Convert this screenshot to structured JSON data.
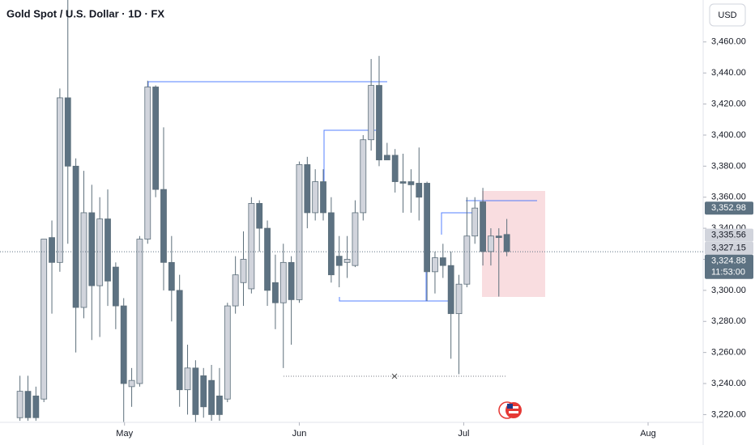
{
  "chart_data": {
    "type": "candlestick",
    "title": "Gold Spot / U.S. Dollar · 1D · FX",
    "currency": "USD",
    "up_color": "#d1d4dc",
    "down_color": "#5d7282",
    "wick_color": "#5d6f7b",
    "ylim": [
      3215,
      3487
    ],
    "yticks": [
      {
        "value": 3220,
        "label": "3,220.00"
      },
      {
        "value": 3240,
        "label": "3,240.00"
      },
      {
        "value": 3260,
        "label": "3,260.00"
      },
      {
        "value": 3280,
        "label": "3,280.00"
      },
      {
        "value": 3300,
        "label": "3,300.00"
      },
      {
        "value": 3320,
        "label": "3,320.00"
      },
      {
        "value": 3340,
        "label": "3,340.00"
      },
      {
        "value": 3360,
        "label": "3,360.00"
      },
      {
        "value": 3380,
        "label": "3,380.00"
      },
      {
        "value": 3400,
        "label": "3,400.00"
      },
      {
        "value": 3420,
        "label": "3,420.00"
      },
      {
        "value": 3440,
        "label": "3,440.00"
      },
      {
        "value": 3460,
        "label": "3,460.00"
      }
    ],
    "xlim": [
      -2.5,
      85.6
    ],
    "xticks": [
      {
        "value": 13.1,
        "label": "May"
      },
      {
        "value": 35,
        "label": "Jun"
      },
      {
        "value": 55.6,
        "label": "Jul"
      },
      {
        "value": 78.7,
        "label": "Aug"
      }
    ],
    "x": [
      0,
      1,
      2,
      3,
      4,
      5,
      6,
      7,
      8,
      9,
      10,
      11,
      12,
      13,
      14,
      15,
      16,
      17,
      18,
      19,
      20,
      21,
      22,
      23,
      24,
      25,
      26,
      27,
      28,
      29,
      30,
      31,
      32,
      33,
      34,
      35,
      36,
      37,
      38,
      39,
      40,
      41,
      42,
      43,
      44,
      45,
      46,
      47,
      48,
      49,
      50,
      51,
      52,
      53,
      54,
      55,
      56,
      57,
      58,
      59,
      60,
      61
    ],
    "open": [
      3218,
      3235,
      3232,
      3230,
      3334,
      3318,
      3424,
      3380,
      3289,
      3350,
      3303,
      3346,
      3315,
      3290,
      3238,
      3240,
      3333,
      3431,
      3365,
      3318,
      3300,
      3236,
      3250,
      3245,
      3242,
      3232,
      3230,
      3290,
      3305,
      3301,
      3356,
      3340,
      3305,
      3292,
      3318,
      3294,
      3381,
      3350,
      3370,
      3350,
      3322,
      3318,
      3316,
      3350,
      3397,
      3432,
      3387,
      3387,
      3370,
      3370,
      3369,
      3369,
      3312,
      3321,
      3316,
      3285,
      3304,
      3335,
      3357,
      3325,
      3335,
      3336
    ],
    "high": [
      3245,
      3245,
      3238,
      3333,
      3345,
      3430,
      3490,
      3385,
      3377,
      3368,
      3360,
      3365,
      3318,
      3295,
      3250,
      3335,
      3435,
      3432,
      3405,
      3335,
      3310,
      3265,
      3255,
      3250,
      3252,
      3250,
      3292,
      3322,
      3338,
      3360,
      3358,
      3345,
      3323,
      3330,
      3322,
      3383,
      3386,
      3378,
      3378,
      3360,
      3335,
      3335,
      3358,
      3400,
      3449,
      3451,
      3395,
      3391,
      3388,
      3378,
      3392,
      3370,
      3325,
      3330,
      3325,
      3310,
      3360,
      3360,
      3366,
      3340,
      3340,
      3346
    ],
    "low": [
      3216,
      3216,
      3216,
      3228,
      3285,
      3312,
      3330,
      3260,
      3282,
      3268,
      3270,
      3290,
      3275,
      3215,
      3225,
      3238,
      3330,
      3360,
      3300,
      3280,
      3225,
      3220,
      3215,
      3218,
      3216,
      3216,
      3228,
      3285,
      3290,
      3298,
      3325,
      3290,
      3275,
      3250,
      3265,
      3292,
      3340,
      3345,
      3345,
      3305,
      3302,
      3308,
      3315,
      3345,
      3390,
      3380,
      3384,
      3363,
      3350,
      3350,
      3345,
      3293,
      3298,
      3308,
      3256,
      3246,
      3302,
      3330,
      3316,
      3316,
      3296,
      3322
    ],
    "close": [
      3235,
      3218,
      3218,
      3333,
      3318,
      3424,
      3380,
      3289,
      3350,
      3303,
      3346,
      3306,
      3290,
      3240,
      3242,
      3333,
      3431,
      3365,
      3318,
      3300,
      3236,
      3250,
      3220,
      3225,
      3220,
      3220,
      3290,
      3310,
      3320,
      3356,
      3340,
      3300,
      3292,
      3318,
      3294,
      3381,
      3350,
      3370,
      3350,
      3310,
      3316,
      3320,
      3350,
      3397,
      3432,
      3384,
      3384,
      3370,
      3369,
      3368,
      3360,
      3312,
      3321,
      3316,
      3285,
      3304,
      3335,
      3353,
      3325,
      3335,
      3334,
      3325
    ],
    "price_labels": [
      {
        "value": 3352.98,
        "label": "3,352.98"
      },
      {
        "value": 3335.56,
        "label": "3,335.56"
      },
      {
        "value": 3327.15,
        "label": "3,327.15"
      },
      {
        "value": 3324.88,
        "label": "3,324.88"
      }
    ],
    "countdown": "11:53:00"
  }
}
